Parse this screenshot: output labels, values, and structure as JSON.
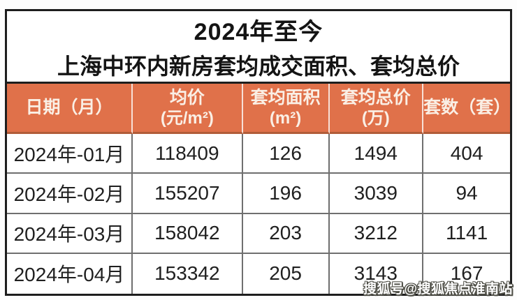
{
  "title": {
    "line1": "2024年至今",
    "line2": "上海中环内新房套均成交面积、套均总价"
  },
  "colors": {
    "header_bg": "#e0714a",
    "header_text": "#faefe5",
    "outer_border": "#1e1e1e",
    "grid_line": "#6f6f6f",
    "header_underline": "#b15c39",
    "body_text": "#202020"
  },
  "table": {
    "headers": [
      {
        "line1": "日期（月）",
        "line2": ""
      },
      {
        "line1": "均价",
        "line2": "(元/m²)"
      },
      {
        "line1": "套均面积",
        "line2": "(m²)"
      },
      {
        "line1": "套均总价",
        "line2": "(万)"
      },
      {
        "line1": "套数（套）",
        "line2": ""
      }
    ],
    "rows": [
      [
        "2024年-01月",
        "118409",
        "126",
        "1494",
        "404"
      ],
      [
        "2024年-02月",
        "155207",
        "196",
        "3039",
        "94"
      ],
      [
        "2024年-03月",
        "158042",
        "203",
        "3212",
        "1141"
      ],
      [
        "2024年-04月",
        "153342",
        "205",
        "3143",
        "167"
      ]
    ]
  },
  "watermark": {
    "text": "搜狐号@搜狐焦点淮南站"
  },
  "chart_data": {
    "type": "table",
    "title": "2024年至今 上海中环内新房套均成交面积、套均总价",
    "columns": [
      "日期（月）",
      "均价(元/m²)",
      "套均面积(m²)",
      "套均总价(万)",
      "套数（套）"
    ],
    "rows": [
      [
        "2024年-01月",
        118409,
        126,
        1494,
        404
      ],
      [
        "2024年-02月",
        155207,
        196,
        3039,
        94
      ],
      [
        "2024年-03月",
        158042,
        203,
        3212,
        1141
      ],
      [
        "2024年-04月",
        153342,
        205,
        3143,
        167
      ]
    ]
  }
}
